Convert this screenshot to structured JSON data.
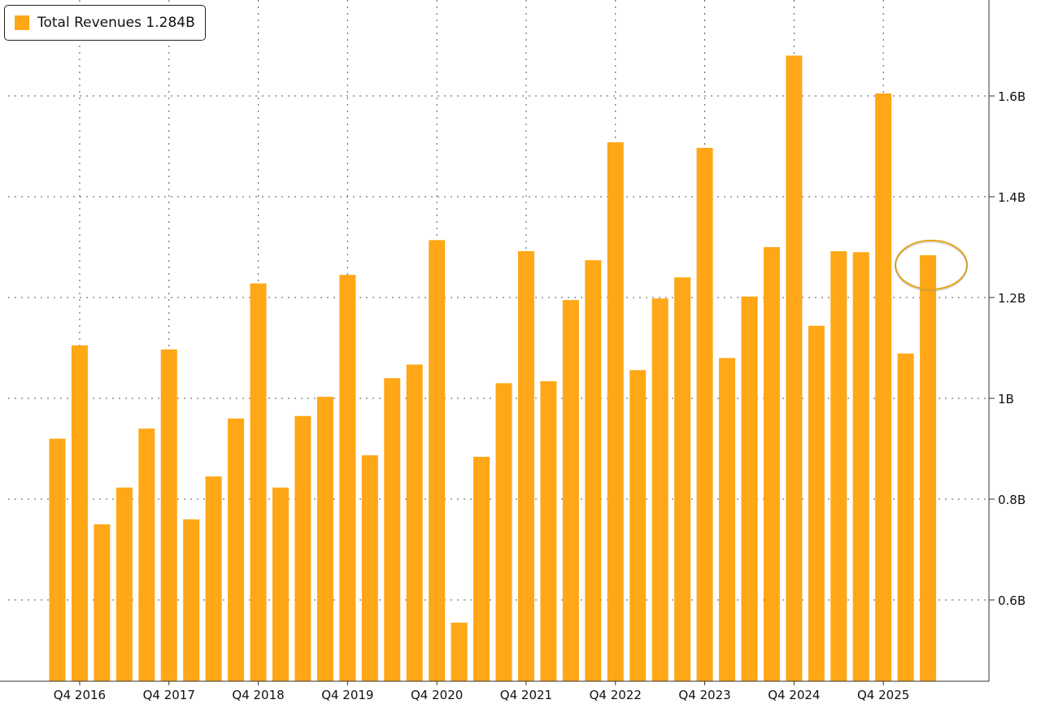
{
  "chart_data": {
    "type": "bar",
    "title": "",
    "xlabel": "",
    "ylabel": "",
    "bar_color": "#FFA716",
    "highlight_color": "#E5A41C",
    "ylim": [
      0.45,
      1.8
    ],
    "y_ticks": [
      {
        "value": 0.6,
        "label": "0.6B"
      },
      {
        "value": 0.8,
        "label": "0.8B"
      },
      {
        "value": 1.0,
        "label": "1B"
      },
      {
        "value": 1.2,
        "label": "1.2B"
      },
      {
        "value": 1.4,
        "label": "1.4B"
      },
      {
        "value": 1.6,
        "label": "1.6B"
      }
    ],
    "x_ticks": [
      {
        "index": 1,
        "label": "Q4 2016"
      },
      {
        "index": 5,
        "label": "Q4 2017"
      },
      {
        "index": 9,
        "label": "Q4 2018"
      },
      {
        "index": 13,
        "label": "Q4 2019"
      },
      {
        "index": 17,
        "label": "Q4 2020"
      },
      {
        "index": 21,
        "label": "Q4 2021"
      },
      {
        "index": 25,
        "label": "Q4 2022"
      },
      {
        "index": 29,
        "label": "Q4 2023"
      },
      {
        "index": 33,
        "label": "Q4 2024"
      },
      {
        "index": 37,
        "label": "Q4 2025"
      }
    ],
    "grid": true,
    "legend_position": "top-left",
    "highlighted_index": 39,
    "series": [
      {
        "name": "Total Revenues",
        "last_value_label": "1.284B",
        "values": [
          0.92,
          1.105,
          0.75,
          0.823,
          0.94,
          1.097,
          0.76,
          0.845,
          0.96,
          1.228,
          0.823,
          0.965,
          1.003,
          1.245,
          0.887,
          1.04,
          1.067,
          1.314,
          0.555,
          0.884,
          1.03,
          1.292,
          1.034,
          1.195,
          1.274,
          1.508,
          1.056,
          1.198,
          1.24,
          1.497,
          1.08,
          1.202,
          1.3,
          1.68,
          1.144,
          1.292,
          1.29,
          1.605,
          1.089,
          1.284
        ]
      }
    ]
  }
}
